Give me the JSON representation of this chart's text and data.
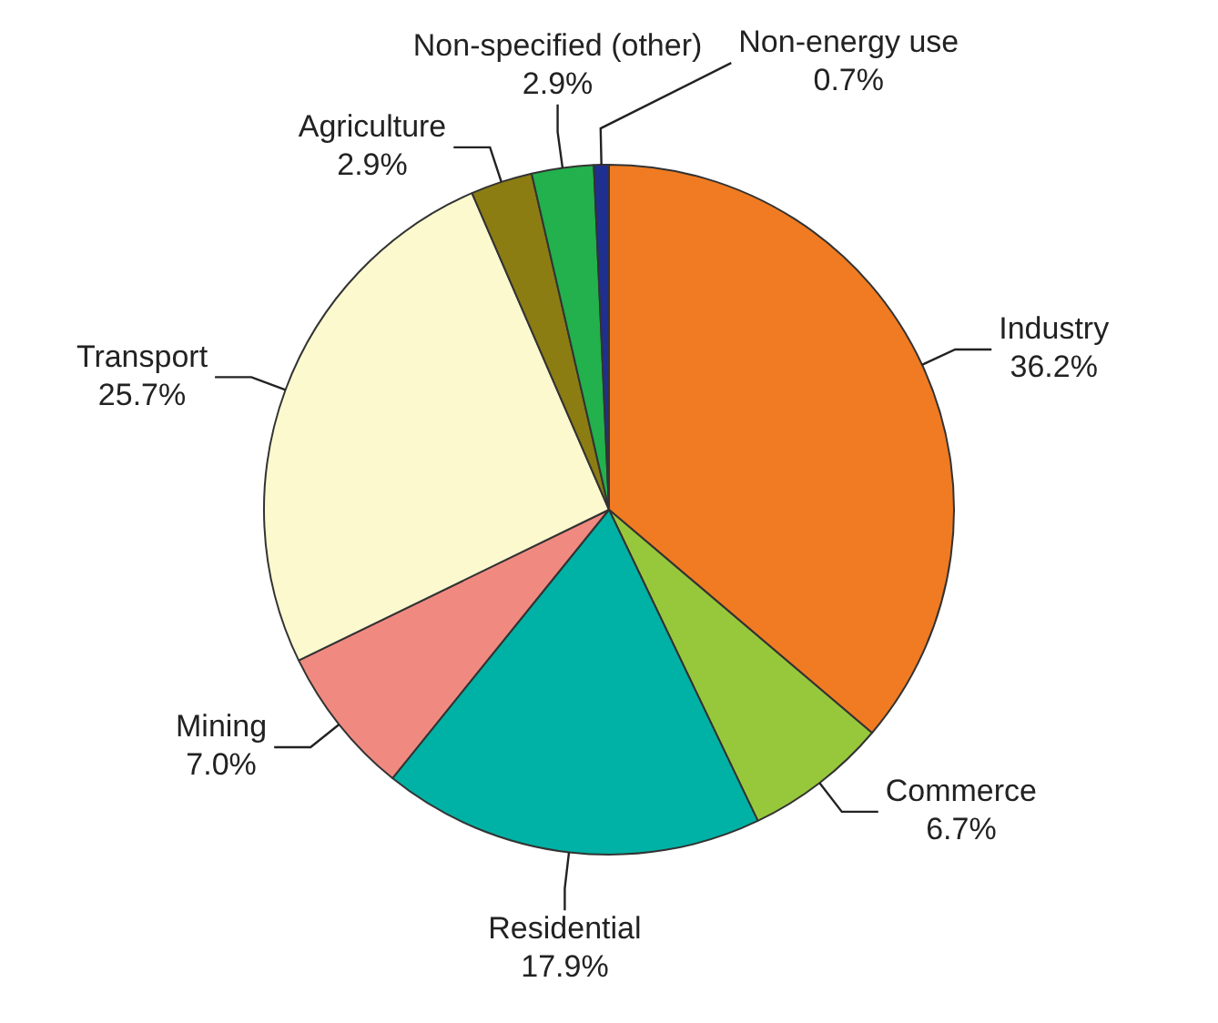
{
  "chart_data": {
    "type": "pie",
    "categories": [
      "Industry",
      "Commerce",
      "Residential",
      "Mining",
      "Transport",
      "Agriculture",
      "Non-specified (other)",
      "Non-energy use"
    ],
    "values": [
      36.2,
      6.7,
      17.9,
      7.0,
      25.7,
      2.9,
      2.9,
      0.7
    ],
    "value_labels": [
      "36.2%",
      "6.7%",
      "17.9%",
      "7.0%",
      "25.7%",
      "2.9%",
      "2.9%",
      "0.7%"
    ],
    "colors": [
      "#f07b22",
      "#97c83c",
      "#00b2a5",
      "#f08a80",
      "#fdf9cf",
      "#8b7d12",
      "#22b14c",
      "#1f2f8f"
    ],
    "legend": false
  }
}
